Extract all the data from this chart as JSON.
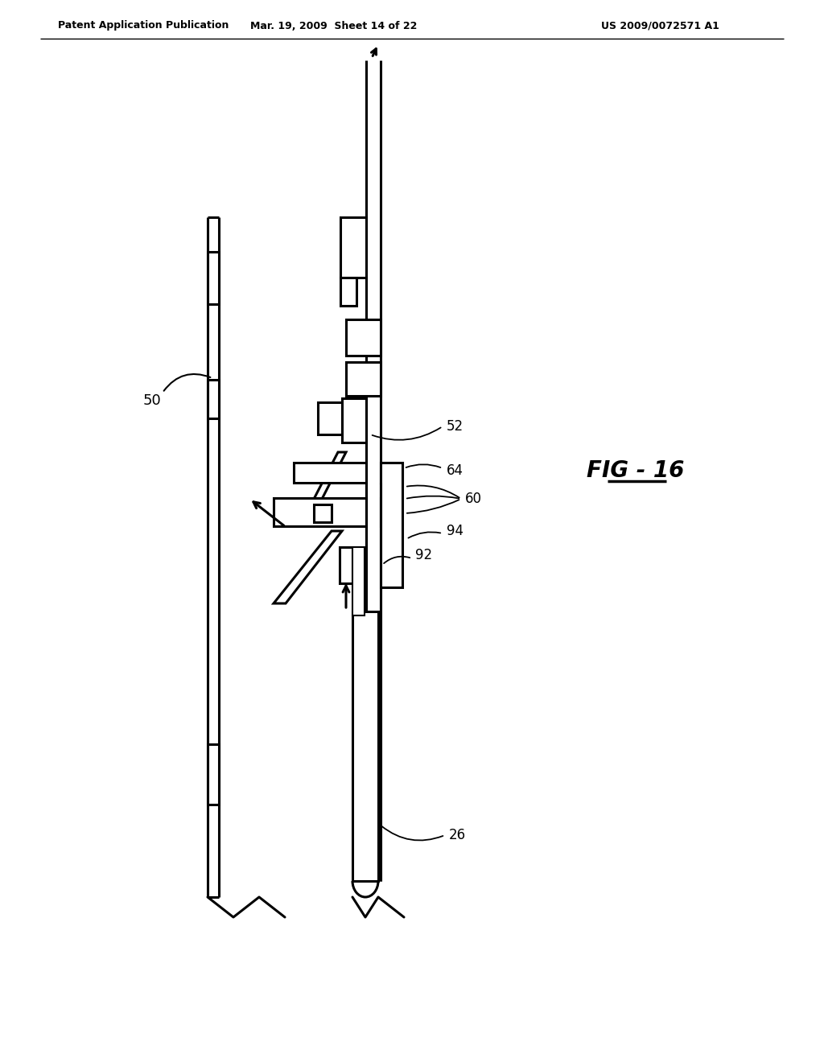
{
  "bg_color": "#ffffff",
  "line_color": "#000000",
  "header_left": "Patent Application Publication",
  "header_mid": "Mar. 19, 2009  Sheet 14 of 22",
  "header_right": "US 2009/0072571 A1",
  "fig_label": "FIG - 16",
  "label_50": "50",
  "label_52": "52",
  "label_60": "60",
  "label_64": "64",
  "label_92": "92",
  "label_94": "94",
  "label_26": "26"
}
